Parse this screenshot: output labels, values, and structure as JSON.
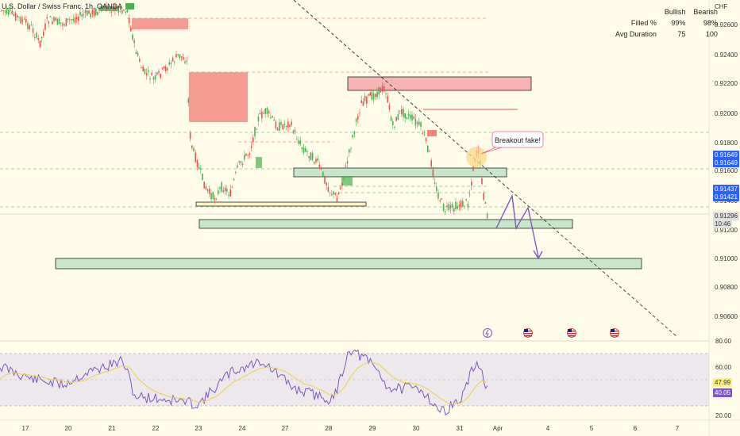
{
  "header": {
    "symbol": "U.S. Dollar / Swiss Franc, 1h, OANDA",
    "currency": "CHF"
  },
  "stats": {
    "col_bullish": "Bullish",
    "col_bearish": "Bearish",
    "rows": [
      {
        "label": "Filled %",
        "bullish": "99%",
        "bearish": "98%"
      },
      {
        "label": "Avg Duration",
        "bullish": "75",
        "bearish": "100"
      }
    ]
  },
  "annotation": {
    "breakout": "Breakout fake!"
  },
  "price_axis": {
    "ticks": [
      "0.92600",
      "0.92400",
      "0.92200",
      "0.92000",
      "0.91800",
      "0.91600",
      "0.91400",
      "0.91200",
      "0.91000",
      "0.90800",
      "0.90600"
    ],
    "labels": [
      {
        "text": "0.91649",
        "bg": "#2962ff",
        "fg": "#ffffff"
      },
      {
        "text": "0.91649",
        "bg": "#2962ff",
        "fg": "#ffffff"
      },
      {
        "text": "0.91437",
        "bg": "#2962ff",
        "fg": "#ffffff"
      },
      {
        "text": "0.91421",
        "bg": "#2962ff",
        "fg": "#ffffff"
      },
      {
        "text": "0.91296",
        "bg": "#e0e0e0",
        "fg": "#333333"
      },
      {
        "text": "10:46",
        "bg": "#e0e0e0",
        "fg": "#333333"
      }
    ]
  },
  "rsi_axis": {
    "ticks": [
      "80.00",
      "60.00",
      "20.00"
    ],
    "labels": [
      {
        "text": "47.99",
        "bg": "#fff176",
        "fg": "#333333"
      },
      {
        "text": "40.05",
        "bg": "#7e57c2",
        "fg": "#ffffff"
      }
    ]
  },
  "time_axis": {
    "labels": [
      "17",
      "20",
      "21",
      "22",
      "23",
      "24",
      "27",
      "28",
      "29",
      "30",
      "31",
      "Apr",
      "4",
      "5",
      "6",
      "7"
    ]
  },
  "colors": {
    "up": "#4caf50",
    "down": "#ef5350",
    "rsi": "#7e57c2",
    "rsi_ma": "#f0d048",
    "support_zone": "#c8e6c9",
    "resistance_zone": "#f8b4b4"
  },
  "event_icons": [
    "lightning-icon",
    "us-flag-icon",
    "us-flag-icon",
    "us-flag-icon"
  ]
}
